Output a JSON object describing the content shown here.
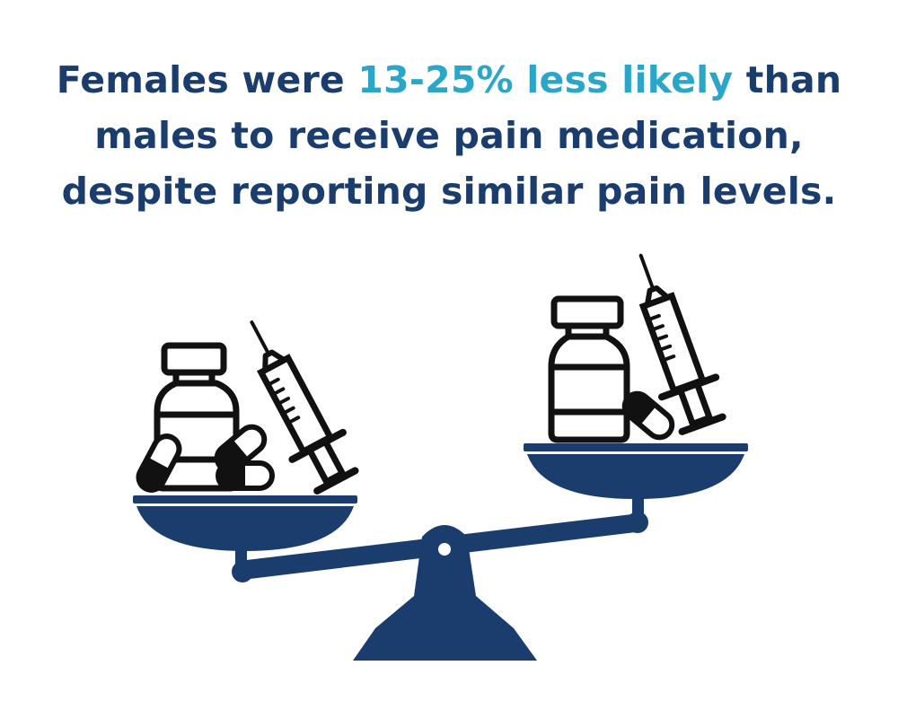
{
  "headline": {
    "line1_before": "Females were ",
    "line1_highlight": "13-25% less likely",
    "line1_after": " than",
    "line2": "males to receive pain medication,",
    "line3": "despite reporting similar pain levels."
  },
  "colors": {
    "navy": "#1b3d6e",
    "accent": "#2aa6c9",
    "outline": "#111111",
    "background": "#ffffff"
  },
  "illustration": {
    "icons": [
      "balance-scale-icon",
      "medicine-bottle-icon",
      "syringe-icon",
      "capsule-icon"
    ]
  }
}
